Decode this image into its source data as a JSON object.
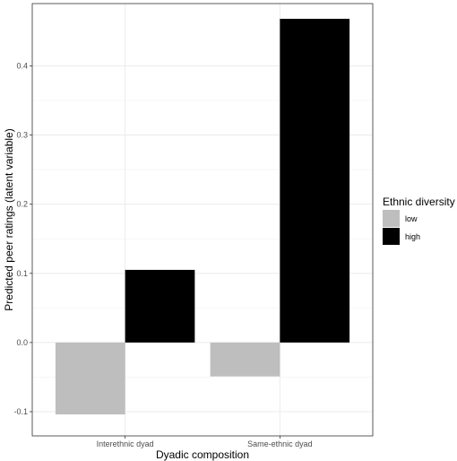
{
  "chart_data": {
    "type": "bar",
    "xlabel": "Dyadic composition",
    "ylabel": "Predicted peer ratings (latent variable)",
    "categories": [
      "Interethnic dyad",
      "Same-ethnic dyad"
    ],
    "series": [
      {
        "name": "low",
        "values": [
          -0.104,
          -0.049
        ],
        "color": "#bebebe"
      },
      {
        "name": "high",
        "values": [
          0.105,
          0.468
        ],
        "color": "#000000"
      }
    ],
    "ylim": [
      -0.135,
      0.49
    ],
    "yticks": [
      -0.1,
      0.0,
      0.1,
      0.2,
      0.3,
      0.4
    ],
    "ytick_labels": [
      "-0.1",
      "0.0",
      "0.1",
      "0.2",
      "0.3",
      "0.4"
    ],
    "legend": {
      "title": "Ethnic diversity",
      "position": "right"
    },
    "grid": true,
    "theme": "bw"
  }
}
